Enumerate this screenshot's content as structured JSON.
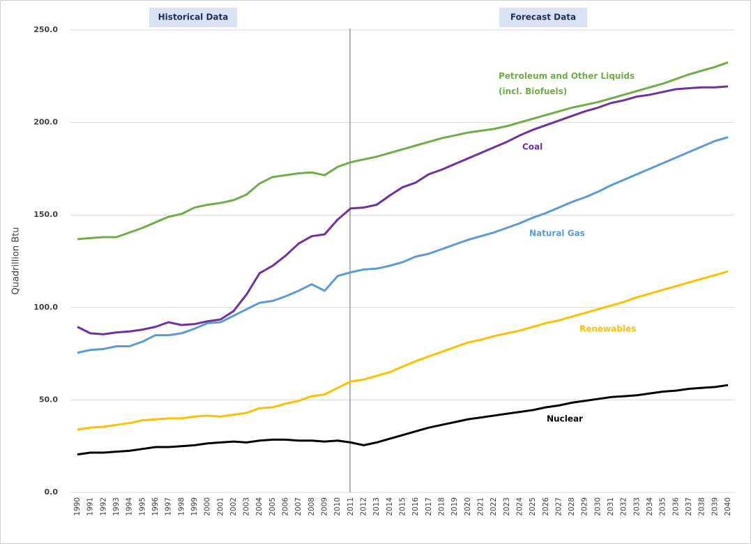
{
  "chart_data": {
    "type": "line",
    "y_label": "Quadrillion Btu",
    "annotations": [
      "Historical Data",
      "Forecast Data"
    ],
    "categories": [
      "1990",
      "1991",
      "1992",
      "1993",
      "1994",
      "1995",
      "1996",
      "1997",
      "1998",
      "1999",
      "2000",
      "2001",
      "2002",
      "2003",
      "2004",
      "2005",
      "2006",
      "2007",
      "2008",
      "2009",
      "2010",
      "2011",
      "2012",
      "2013",
      "2014",
      "2015",
      "2016",
      "2017",
      "2018",
      "2019",
      "2020",
      "2021",
      "2022",
      "2023",
      "2024",
      "2025",
      "2026",
      "2027",
      "2028",
      "2029",
      "2030",
      "2031",
      "2032",
      "2033",
      "2034",
      "2035",
      "2036",
      "2037",
      "2038",
      "2039",
      "2040"
    ],
    "ylim": [
      0,
      250
    ],
    "yticks": [
      {
        "value": 0,
        "label": "0.0"
      },
      {
        "value": 50,
        "label": "50.0"
      },
      {
        "value": 100,
        "label": "100.0"
      },
      {
        "value": 150,
        "label": "150.0"
      },
      {
        "value": 200,
        "label": "200.0"
      },
      {
        "value": 250,
        "label": "250.0"
      }
    ],
    "grid": true,
    "series": [
      {
        "name": "Petroleum and Other Liquids (incl. Biofuels)",
        "color": "#70ad47",
        "values": [
          136.9,
          137.5,
          138,
          138,
          140.5,
          143,
          146,
          149,
          150.5,
          154,
          155.5,
          156.5,
          158,
          161,
          167,
          170.5,
          171.5,
          172.5,
          173,
          171.5,
          176,
          178.5,
          180,
          181.5,
          183.5,
          185.5,
          187.5,
          189.5,
          191.5,
          193,
          194.5,
          195.5,
          196.5,
          198,
          200,
          202,
          204,
          206,
          208,
          209.5,
          211,
          213,
          215,
          217,
          219,
          221,
          223.5,
          226,
          228,
          230,
          232.5
        ]
      },
      {
        "name": "Coal",
        "color": "#7030a0",
        "values": [
          89.5,
          86,
          85.5,
          86.5,
          87,
          88,
          89.5,
          92,
          90.5,
          91,
          92.5,
          93.5,
          98,
          107,
          118.5,
          122.5,
          128,
          134.5,
          138.5,
          139.5,
          147.5,
          153.5,
          154,
          155.5,
          160.5,
          165,
          167.5,
          172,
          174.5,
          177.5,
          180.5,
          183.5,
          186.5,
          189.5,
          193,
          196,
          198.5,
          201,
          203.5,
          206,
          208,
          210.5,
          212,
          214,
          215,
          216.5,
          218,
          218.5,
          219,
          219,
          219.5
        ]
      },
      {
        "name": "Natural Gas",
        "color": "#5b9bd5",
        "values": [
          75.5,
          77,
          77.5,
          79,
          79,
          81.5,
          85,
          85,
          86,
          88.5,
          91.5,
          92,
          95.5,
          99,
          102.5,
          103.5,
          106,
          109,
          112.5,
          109,
          117,
          119,
          120.5,
          121,
          122.5,
          124.5,
          127.5,
          129,
          131.5,
          134,
          136.5,
          138.5,
          140.5,
          143,
          145.5,
          148.5,
          151,
          154,
          157,
          159.5,
          162.5,
          166,
          169,
          172,
          175,
          178,
          181,
          184,
          187,
          190,
          192
        ]
      },
      {
        "name": "Renewables",
        "color": "#ffc000",
        "values": [
          34,
          35,
          35.5,
          36.5,
          37.5,
          39,
          39.5,
          40,
          40,
          41,
          41.5,
          41,
          42,
          43,
          45.5,
          46,
          48,
          49.5,
          52,
          53,
          56.5,
          60,
          61,
          63,
          65,
          68,
          71,
          73.5,
          76,
          78.5,
          81,
          82.5,
          84.5,
          86,
          87.5,
          89.5,
          91.5,
          93,
          95,
          97,
          99,
          101,
          103,
          105.5,
          107.5,
          109.5,
          111.5,
          113.5,
          115.5,
          117.5,
          119.5
        ]
      },
      {
        "name": "Nuclear",
        "color": "#000000",
        "values": [
          20.5,
          21.5,
          21.5,
          22,
          22.5,
          23.5,
          24.5,
          24.5,
          25,
          25.5,
          26.5,
          27,
          27.5,
          27,
          28,
          28.5,
          28.5,
          28,
          28,
          27.5,
          28,
          27,
          25.5,
          27,
          29,
          31,
          33,
          35,
          36.5,
          38,
          39.5,
          40.5,
          41.5,
          42.5,
          43.5,
          44.5,
          46,
          47,
          48.5,
          49.5,
          50.5,
          51.5,
          52,
          52.5,
          53.5,
          54.5,
          55,
          56,
          56.5,
          57,
          58
        ]
      }
    ]
  }
}
